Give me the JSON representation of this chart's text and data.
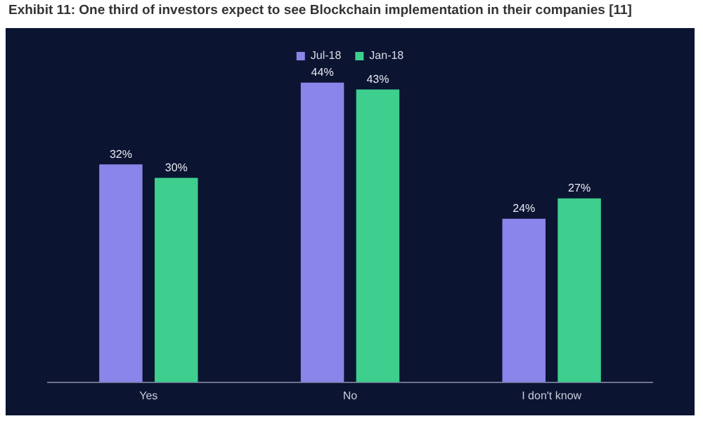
{
  "chart_data": {
    "type": "bar",
    "title": "Exhibit 11: One third of investors expect to see Blockchain implementation in their companies [11]",
    "categories": [
      "Yes",
      "No",
      "I don't know"
    ],
    "series": [
      {
        "name": "Jul-18",
        "color": "#8a85ea",
        "values": [
          32,
          44,
          24
        ],
        "value_labels": [
          "32%",
          "44%",
          "24%"
        ]
      },
      {
        "name": "Jan-18",
        "color": "#3ecf8e",
        "values": [
          30,
          43,
          27
        ],
        "value_labels": [
          "30%",
          "43%",
          "27%"
        ]
      }
    ],
    "legend": "top"
  }
}
